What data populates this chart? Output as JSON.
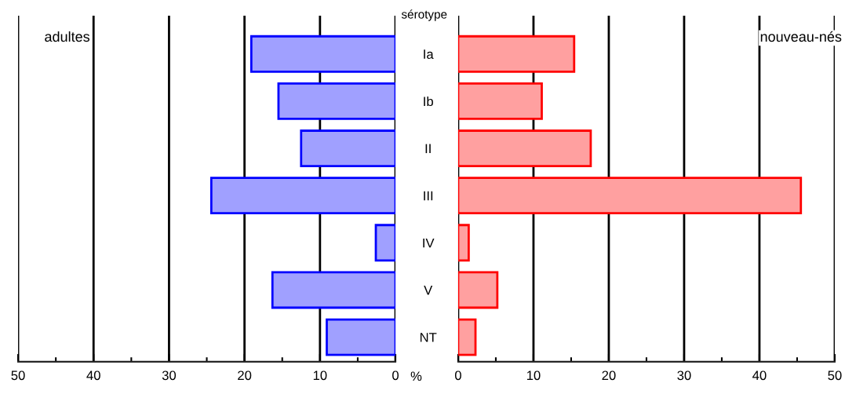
{
  "chart_data": [
    {
      "type": "bar",
      "orientation": "horizontal",
      "title": "adultes",
      "xlabel": "%",
      "categories": [
        "Ia",
        "Ib",
        "II",
        "III",
        "IV",
        "V",
        "NT"
      ],
      "values": [
        19.1,
        15.5,
        12.5,
        24.4,
        2.6,
        16.3,
        9.1
      ],
      "color": "#a0a0ff",
      "xlim": [
        50,
        0
      ],
      "xticks": [
        50,
        {
          "value": 45,
          "label": null
        },
        40,
        {
          "value": 35,
          "label": null
        },
        30,
        {
          "value": 25,
          "label": null
        },
        20,
        {
          "value": 15,
          "label": null
        },
        10,
        {
          "value": 5,
          "label": null
        },
        0
      ],
      "grid": "x"
    },
    {
      "type": "bar",
      "orientation": "horizontal",
      "title": "nouveau-nés",
      "ylabel": "sérotype",
      "values": [
        15.4,
        11.1,
        17.6,
        45.5,
        1.4,
        5.2,
        2.3
      ],
      "color": "#ffa0a0",
      "xlim": [
        0,
        50
      ],
      "xticks": [
        0,
        {
          "value": 5,
          "label": null
        },
        10,
        {
          "value": 15,
          "label": null
        },
        20,
        {
          "value": 25,
          "label": null
        },
        30,
        {
          "value": 35,
          "label": null
        },
        40,
        {
          "value": 45,
          "label": null
        },
        50
      ],
      "grid": "x",
      "tick_labels": "x"
    }
  ]
}
